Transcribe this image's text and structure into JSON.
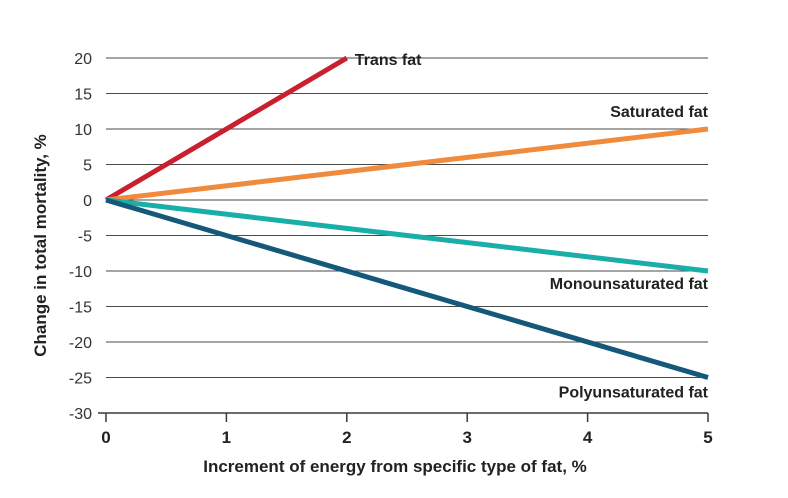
{
  "chart_data": {
    "type": "line",
    "title": "",
    "xlabel": "Increment of energy from specific type of fat, %",
    "ylabel": "Change in total mortality, %",
    "xlim": [
      0,
      5
    ],
    "ylim": [
      -30,
      20
    ],
    "x_ticks": [
      "0",
      "1",
      "2",
      "3",
      "4",
      "5"
    ],
    "y_ticks": [
      "20",
      "15",
      "10",
      "5",
      "0",
      "-5",
      "-10",
      "-15",
      "-20",
      "-25",
      "-30"
    ],
    "grid": true,
    "series": [
      {
        "name": "Trans fat",
        "color": "#c8202e",
        "x": [
          0,
          2
        ],
        "y": [
          0,
          20
        ]
      },
      {
        "name": "Saturated fat",
        "color": "#f08a3c",
        "x": [
          0,
          5
        ],
        "y": [
          0,
          10
        ]
      },
      {
        "name": "Monounsaturated fat",
        "color": "#1aaea8",
        "x": [
          0,
          5
        ],
        "y": [
          0,
          -10
        ]
      },
      {
        "name": "Polyunsaturated fat",
        "color": "#16587a",
        "x": [
          0,
          5
        ],
        "y": [
          0,
          -25
        ]
      }
    ]
  }
}
